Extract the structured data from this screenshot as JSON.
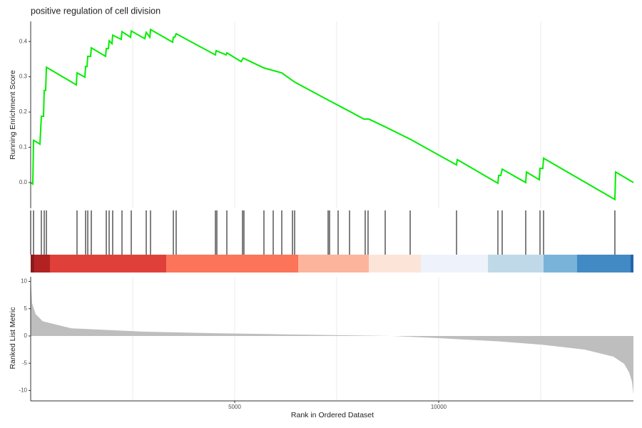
{
  "chart_data": [
    {
      "type": "line",
      "title": "positive regulation of cell division",
      "ylabel": "Running Enrichment Score",
      "color": "#00ee00",
      "xlim": [
        0,
        14773
      ],
      "ylim": [
        -0.073,
        0.457
      ],
      "yticks": [
        {
          "value": 0,
          "label": "0.0"
        },
        0.1,
        0.2,
        0.3,
        0.4
      ],
      "xgrid": [
        2500,
        5000,
        7500,
        10000,
        12500
      ],
      "x": [
        0,
        52,
        70,
        227,
        262,
        315,
        332,
        367,
        385,
        1119,
        1136,
        1329,
        1346,
        1381,
        1399,
        1469,
        1486,
        1836,
        1853,
        1906,
        1923,
        1993,
        2010,
        2220,
        2238,
        2448,
        2465,
        2797,
        2832,
        2920,
        2937,
        3479,
        3497,
        3531,
        3566,
        4528,
        4545,
        4790,
        4808,
        5157,
        5210,
        5717,
        6154,
        6469,
        7290,
        7815,
        8164,
        8287,
        8689,
        9301,
        10437,
        10455,
        11451,
        11469,
        11521,
        11556,
        12133,
        12150,
        12465,
        12483,
        12552,
        12570,
        14318,
        14336,
        14773
      ],
      "values": [
        0,
        -0.004,
        0.12,
        0.109,
        0.188,
        0.188,
        0.261,
        0.261,
        0.327,
        0.277,
        0.311,
        0.299,
        0.329,
        0.329,
        0.358,
        0.358,
        0.382,
        0.358,
        0.38,
        0.38,
        0.402,
        0.394,
        0.418,
        0.406,
        0.428,
        0.412,
        0.43,
        0.408,
        0.426,
        0.412,
        0.434,
        0.398,
        0.412,
        0.412,
        0.422,
        0.362,
        0.374,
        0.362,
        0.368,
        0.343,
        0.353,
        0.325,
        0.311,
        0.285,
        0.234,
        0.202,
        0.18,
        0.18,
        0.158,
        0.123,
        0.05,
        0.065,
        -0.002,
        0.02,
        0.02,
        0.038,
        0,
        0.03,
        0.008,
        0.04,
        0.04,
        0.069,
        -0.048,
        0.03,
        0
      ]
    },
    {
      "type": "rug",
      "color": "#000000",
      "xlim": [
        0,
        14773
      ],
      "x": [
        0,
        70,
        262,
        332,
        385,
        1136,
        1346,
        1399,
        1486,
        1853,
        1923,
        2010,
        2238,
        2465,
        2832,
        2937,
        3497,
        3566,
        4528,
        4563,
        4808,
        5192,
        5227,
        5717,
        5944,
        6154,
        6416,
        6469,
        7290,
        7325,
        7535,
        7815,
        8199,
        8269,
        8689,
        9301,
        10437,
        11451,
        11556,
        12133,
        12483,
        12570,
        14318
      ],
      "color_bar": {
        "breaks": [
          0,
          87,
          472,
          3322,
          6556,
          8287,
          9563,
          11207,
          12570,
          13392,
          14703,
          14773
        ],
        "colors": [
          "#8b1a1a",
          "#b22222",
          "#e0403a",
          "#fc7459",
          "#fcb59c",
          "#fde4d9",
          "#eef3fb",
          "#c0d9e8",
          "#7ab3d9",
          "#428ac4",
          "#2464ad"
        ]
      }
    },
    {
      "type": "area",
      "ylabel": "Ranked List Metric",
      "xlabel": "Rank in Ordered Dataset",
      "color": "#bebebe",
      "xlim": [
        0,
        14773
      ],
      "ylim": [
        -11.9,
        10.85
      ],
      "yticks": [
        10,
        5,
        0,
        -5,
        -10
      ],
      "xticks": [
        5000,
        10000
      ],
      "xgrid": [
        2500,
        5000,
        7500,
        10000,
        12500
      ],
      "x": [
        0,
        35,
        122,
        297,
        997,
        2745,
        4493,
        6241,
        7990,
        8864,
        10000,
        11486,
        12535,
        13584,
        14283,
        14545,
        14668,
        14738,
        14773
      ],
      "values": [
        10.5,
        6,
        4,
        2.7,
        1.4,
        0.8,
        0.5,
        0.3,
        0.1,
        0,
        -0.4,
        -1,
        -1.6,
        -2.5,
        -3.8,
        -5.1,
        -6.7,
        -8.4,
        -10.7
      ]
    }
  ]
}
